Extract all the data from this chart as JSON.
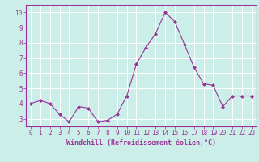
{
  "x": [
    0,
    1,
    2,
    3,
    4,
    5,
    6,
    7,
    8,
    9,
    10,
    11,
    12,
    13,
    14,
    15,
    16,
    17,
    18,
    19,
    20,
    21,
    22,
    23
  ],
  "y": [
    4.0,
    4.2,
    4.0,
    3.3,
    2.8,
    3.8,
    3.7,
    2.8,
    2.9,
    3.3,
    4.5,
    6.6,
    7.7,
    8.6,
    10.0,
    9.4,
    7.9,
    6.4,
    5.3,
    5.2,
    3.8,
    4.5,
    4.5,
    4.5
  ],
  "line_color": "#993399",
  "marker": "D",
  "marker_size": 2.0,
  "xlabel": "Windchill (Refroidissement éolien,°C)",
  "ylim": [
    2.5,
    10.5
  ],
  "xlim": [
    -0.5,
    23.5
  ],
  "yticks": [
    3,
    4,
    5,
    6,
    7,
    8,
    9,
    10
  ],
  "xticks": [
    0,
    1,
    2,
    3,
    4,
    5,
    6,
    7,
    8,
    9,
    10,
    11,
    12,
    13,
    14,
    15,
    16,
    17,
    18,
    19,
    20,
    21,
    22,
    23
  ],
  "background_color": "#cceee8",
  "grid_color": "#ffffff",
  "xlabel_fontsize": 6.0,
  "tick_fontsize": 5.5,
  "linewidth": 0.8
}
